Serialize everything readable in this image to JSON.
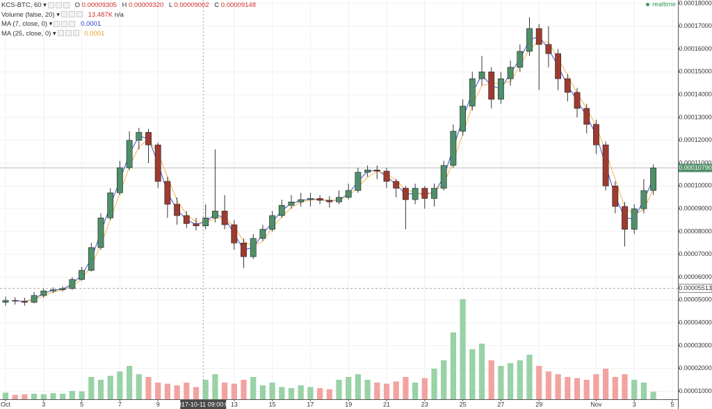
{
  "chart_data": {
    "type": "candlestick",
    "status": {
      "symbol": "KCS-BTC, 60",
      "o_label": "O",
      "open": "0.00009305",
      "h_label": "H",
      "high": "0.00009320",
      "l_label": "L",
      "low": "0.00009002",
      "c_label": "C",
      "close": "0.00009148",
      "volume_name": "Volume (false, 20)",
      "volume_value": "13.487K",
      "volume_ma": "n/a",
      "ma7_value": "0.0001",
      "ma25_value": "0.0001"
    },
    "realtime": "realtime",
    "x": [
      "2017-10-01T00:00",
      "2017-10-01T12:00",
      "2017-10-02T00:00",
      "2017-10-02T12:00",
      "2017-10-03T00:00",
      "2017-10-03T12:00",
      "2017-10-04T00:00",
      "2017-10-04T12:00",
      "2017-10-05T00:00",
      "2017-10-05T12:00",
      "2017-10-06T00:00",
      "2017-10-06T12:00",
      "2017-10-07T00:00",
      "2017-10-07T12:00",
      "2017-10-08T00:00",
      "2017-10-08T12:00",
      "2017-10-09T00:00",
      "2017-10-09T12:00",
      "2017-10-10T00:00",
      "2017-10-10T12:00",
      "2017-10-11T00:00",
      "2017-10-11T12:00",
      "2017-10-12T00:00",
      "2017-10-12T12:00",
      "2017-10-13T00:00",
      "2017-10-13T12:00",
      "2017-10-14T00:00",
      "2017-10-14T12:00",
      "2017-10-15T00:00",
      "2017-10-15T12:00",
      "2017-10-16T00:00",
      "2017-10-16T12:00",
      "2017-10-17T00:00",
      "2017-10-17T12:00",
      "2017-10-18T00:00",
      "2017-10-18T12:00",
      "2017-10-19T00:00",
      "2017-10-19T12:00",
      "2017-10-20T00:00",
      "2017-10-20T12:00",
      "2017-10-21T00:00",
      "2017-10-21T12:00",
      "2017-10-22T00:00",
      "2017-10-22T12:00",
      "2017-10-23T00:00",
      "2017-10-23T12:00",
      "2017-10-24T00:00",
      "2017-10-24T12:00",
      "2017-10-25T00:00",
      "2017-10-25T12:00",
      "2017-10-26T00:00",
      "2017-10-26T12:00",
      "2017-10-27T00:00",
      "2017-10-27T12:00",
      "2017-10-28T00:00",
      "2017-10-28T12:00",
      "2017-10-29T00:00",
      "2017-10-29T12:00",
      "2017-10-30T00:00",
      "2017-10-30T12:00",
      "2017-10-31T00:00",
      "2017-10-31T12:00",
      "2017-11-01T00:00",
      "2017-11-01T12:00",
      "2017-11-02T00:00",
      "2017-11-02T12:00",
      "2017-11-03T00:00",
      "2017-11-03T12:00",
      "2017-11-04T00:00"
    ],
    "open": [
      4.9e-05,
      4.98e-05,
      4.95e-05,
      4.9e-05,
      5.2e-05,
      5.4e-05,
      5.45e-05,
      5.5e-05,
      5.9e-05,
      6.3e-05,
      7.3e-05,
      8.6e-05,
      9.7e-05,
      0.000108,
      0.00012,
      0.0001235,
      0.000118,
      0.000102,
      9.2e-05,
      8.7e-05,
      8.35e-05,
      8.25e-05,
      8.6e-05,
      8.9e-05,
      8.3e-05,
      7.5e-05,
      6.9e-05,
      7.7e-05,
      8.1e-05,
      8.7e-05,
      9.15e-05,
      9.3e-05,
      9.4e-05,
      9.45e-05,
      9.37e-05,
      9.3e-05,
      9.5e-05,
      9.8e-05,
      0.000106,
      0.000107,
      0.0001065,
      0.000102,
      9.9e-05,
      9.4e-05,
      9.9e-05,
      9.45e-05,
      9.9e-05,
      0.000109,
      0.000124,
      0.000135,
      0.000147,
      0.00015,
      0.000138,
      0.000147,
      0.000152,
      0.000159,
      0.000169,
      0.000162,
      0.000158,
      0.000147,
      0.000141,
      0.000134,
      0.000127,
      0.000118,
      0.0001,
      9.1e-05,
      8.1e-05,
      9e-05,
      9.8e-05
    ],
    "high": [
      5.15e-05,
      5.12e-05,
      5.1e-05,
      5.35e-05,
      5.5e-05,
      5.55e-05,
      5.6e-05,
      6e-05,
      6.45e-05,
      7.5e-05,
      8.8e-05,
      9.9e-05,
      0.000111,
      0.000124,
      0.0001255,
      0.000125,
      0.000119,
      0.000104,
      9.5e-05,
      8.9e-05,
      8.6e-05,
      9.2e-05,
      0.000116,
      9.6e-05,
      8.5e-05,
      7.7e-05,
      7.9e-05,
      8.3e-05,
      8.9e-05,
      9.4e-05,
      9.6e-05,
      9.7e-05,
      9.7e-05,
      9.6e-05,
      9.55e-05,
      9.8e-05,
      0.000101,
      0.000108,
      0.000109,
      0.000109,
      0.000108,
      0.000103,
      0.0001,
      0.000101,
      0.0001,
      0.000101,
      0.000111,
      0.000127,
      0.000138,
      0.00015,
      0.000157,
      0.000152,
      0.00015,
      0.000155,
      0.000162,
      0.0001739,
      0.000171,
      0.00017,
      0.00016,
      0.000149,
      0.000143,
      0.000136,
      0.000129,
      0.0001195,
      0.000102,
      9.3e-05,
      9.2e-05,
      0.000103,
      0.0001095
    ],
    "low": [
      4.75e-05,
      4.8e-05,
      4.75e-05,
      4.85e-05,
      5.1e-05,
      5.3e-05,
      5.38e-05,
      5.45e-05,
      5.85e-05,
      6.25e-05,
      7.2e-05,
      8.5e-05,
      9.6e-05,
      0.000107,
      0.000116,
      0.00011,
      9.9e-05,
      8.6e-05,
      8.3e-05,
      8.15e-05,
      8.05e-05,
      8.1e-05,
      8.4e-05,
      8.1e-05,
      7.2e-05,
      6.4e-05,
      6.8e-05,
      7.6e-05,
      8e-05,
      8.6e-05,
      9e-05,
      9.1e-05,
      9.1e-05,
      9.2e-05,
      9.05e-05,
      9.2e-05,
      9.4e-05,
      9.7e-05,
      0.000104,
      0.000103,
      9.9e-05,
      9.5e-05,
      8.1e-05,
      9.2e-05,
      9e-05,
      9.1e-05,
      9.8e-05,
      0.000108,
      0.000122,
      0.000133,
      0.000144,
      0.000134,
      0.000136,
      0.000144,
      0.00015,
      0.000157,
      0.000142,
      0.000152,
      0.000142,
      0.000137,
      0.00013,
      0.000123,
      0.000114,
      9.8e-05,
      8.8e-05,
      7.35e-05,
      7.9e-05,
      8.8e-05,
      9.6e-05
    ],
    "close": [
      4.98e-05,
      4.95e-05,
      4.9e-05,
      5.2e-05,
      5.4e-05,
      5.45e-05,
      5.5e-05,
      5.9e-05,
      6.3e-05,
      7.3e-05,
      8.6e-05,
      9.7e-05,
      0.000108,
      0.00012,
      0.0001235,
      0.000118,
      0.000102,
      9.2e-05,
      8.7e-05,
      8.35e-05,
      8.25e-05,
      8.6e-05,
      8.9e-05,
      8.3e-05,
      7.5e-05,
      6.9e-05,
      7.7e-05,
      8.1e-05,
      8.7e-05,
      9.15e-05,
      9.3e-05,
      9.4e-05,
      9.45e-05,
      9.37e-05,
      9.3e-05,
      9.5e-05,
      9.8e-05,
      0.000106,
      0.000107,
      0.0001065,
      0.000102,
      9.9e-05,
      9.4e-05,
      9.9e-05,
      9.45e-05,
      9.9e-05,
      0.000109,
      0.000124,
      0.000135,
      0.000147,
      0.00015,
      0.000138,
      0.000147,
      0.000152,
      0.000159,
      0.000169,
      0.000162,
      0.000158,
      0.000147,
      0.000141,
      0.000134,
      0.000127,
      0.000118,
      0.0001,
      9.1e-05,
      8.1e-05,
      9e-05,
      9.8e-05,
      0.0001079
    ],
    "volume": [
      12000,
      8000,
      9000,
      10000,
      9000,
      11000,
      10000,
      15000,
      14000,
      40000,
      35000,
      42000,
      50000,
      60000,
      45000,
      40000,
      30000,
      28000,
      25000,
      30000,
      22000,
      35000,
      45000,
      30000,
      28000,
      35000,
      40000,
      25000,
      30000,
      22000,
      20000,
      25000,
      22000,
      20000,
      18000,
      35000,
      40000,
      45000,
      35000,
      30000,
      28000,
      32000,
      40000,
      30000,
      38000,
      55000,
      70000,
      120000,
      180000,
      90000,
      100000,
      70000,
      60000,
      65000,
      70000,
      80000,
      60000,
      50000,
      45000,
      40000,
      38000,
      35000,
      45000,
      55000,
      40000,
      45000,
      35000,
      30000,
      13487
    ],
    "up_color": "#4f8f69",
    "down_color": "#9e3b31",
    "volume_up_color": "#98d2a6",
    "volume_down_color": "#f2a3a0",
    "series": [
      {
        "name": "MA (7, close, 0)",
        "color": "#3c4fd6",
        "values": [
          null,
          4.97e-05,
          4.93e-05,
          5.05e-05,
          5.3e-05,
          5.43e-05,
          5.48e-05,
          5.7e-05,
          6.1e-05,
          6.8e-05,
          7.95e-05,
          9.15e-05,
          0.0001025,
          0.000114,
          0.0001218,
          0.0001208,
          0.00011,
          9.7e-05,
          8.95e-05,
          8.53e-05,
          8.3e-05,
          8.43e-05,
          8.75e-05,
          8.6e-05,
          7.9e-05,
          7.2e-05,
          7.3e-05,
          7.9e-05,
          8.4e-05,
          8.93e-05,
          9.23e-05,
          9.35e-05,
          9.43e-05,
          9.41e-05,
          9.34e-05,
          9.4e-05,
          9.65e-05,
          0.000102,
          0.0001065,
          0.0001068,
          0.0001043,
          0.0001005,
          9.65e-05,
          9.65e-05,
          9.68e-05,
          9.68e-05,
          0.000104,
          0.0001165,
          0.0001295,
          0.000141,
          0.0001485,
          0.000144,
          0.0001425,
          0.0001495,
          0.0001555,
          0.000164,
          0.0001655,
          0.00016,
          0.0001525,
          0.000144,
          0.0001375,
          0.0001305,
          0.0001225,
          0.000109,
          9.55e-05,
          8.6e-05,
          8.55e-05,
          9.4e-05,
          0.000103
        ]
      },
      {
        "name": "MA (25, close, 0)",
        "color": "#f5b34a",
        "values": [
          null,
          null,
          4.94e-05,
          5.02e-05,
          5.17e-05,
          5.35e-05,
          5.45e-05,
          5.62e-05,
          5.9e-05,
          6.5e-05,
          7.4e-05,
          8.53e-05,
          9.7e-05,
          0.0001083,
          0.0001172,
          0.0001205,
          0.0001145,
          0.000104,
          9.37e-05,
          8.75e-05,
          8.43e-05,
          8.4e-05,
          8.58e-05,
          8.6e-05,
          8.23e-05,
          7.57e-05,
          7.37e-05,
          7.57e-05,
          8.17e-05,
          8.65e-05,
          9.05e-05,
          9.28e-05,
          9.38e-05,
          9.41e-05,
          9.37e-05,
          9.39e-05,
          9.53e-05,
          9.97e-05,
          0.0001037,
          0.0001065,
          0.0001052,
          0.0001025,
          9.83e-05,
          9.73e-05,
          9.58e-05,
          9.75e-05,
          0.0001008,
          0.0001107,
          0.0001227,
          0.0001353,
          0.000144,
          0.000145,
          0.000145,
          0.0001457,
          0.0001527,
          0.00016,
          0.0001633,
          0.000163,
          0.0001557,
          0.0001487,
          0.0001407,
          0.000134,
          0.0001263,
          0.000115,
          0.000103,
          9.07e-05,
          8.73e-05,
          8.97e-05,
          9.86e-05
        ]
      }
    ],
    "last_price": {
      "value": 0.0001079,
      "label": "0.00010790"
    },
    "reference_price": {
      "value": 5.513e-05,
      "label": "0.00005513"
    },
    "crosshair": "2017-10-11 09:00:00",
    "xlim": [
      "2017-09-30T17:00",
      "2017-11-05T07:00"
    ],
    "xticks": [
      {
        "value": "2017-10-01",
        "label": "Oct"
      },
      {
        "value": "2017-10-03",
        "label": "3"
      },
      {
        "value": "2017-10-05",
        "label": "5"
      },
      {
        "value": "2017-10-07",
        "label": "7"
      },
      {
        "value": "2017-10-09",
        "label": "9"
      },
      {
        "value": "2017-10-13",
        "label": "13"
      },
      {
        "value": "2017-10-15",
        "label": "15"
      },
      {
        "value": "2017-10-17",
        "label": "17"
      },
      {
        "value": "2017-10-19",
        "label": "19"
      },
      {
        "value": "2017-10-21",
        "label": "21"
      },
      {
        "value": "2017-10-23",
        "label": "23"
      },
      {
        "value": "2017-10-25",
        "label": "25"
      },
      {
        "value": "2017-10-27",
        "label": "27"
      },
      {
        "value": "2017-10-29",
        "label": "29"
      },
      {
        "value": "2017-11-01",
        "label": "Nov"
      },
      {
        "value": "2017-11-03",
        "label": "3"
      },
      {
        "value": "2017-11-05",
        "label": "5"
      }
    ],
    "ylim": [
      6.5e-06,
      0.0001815
    ],
    "yticks": [
      {
        "value": 1e-05,
        "label": "0.00001000"
      },
      {
        "value": 2e-05,
        "label": "0.00002000"
      },
      {
        "value": 3e-05,
        "label": "0.00003000"
      },
      {
        "value": 4e-05,
        "label": "0.00004000"
      },
      {
        "value": 5e-05,
        "label": "0.00005000"
      },
      {
        "value": 6e-05,
        "label": "0.00006000"
      },
      {
        "value": 7e-05,
        "label": "0.00007000"
      },
      {
        "value": 8e-05,
        "label": "0.00008000"
      },
      {
        "value": 9e-05,
        "label": "0.00009000"
      },
      {
        "value": 0.0001,
        "label": "0.00010000"
      },
      {
        "value": 0.00011,
        "label": "0.00011000"
      },
      {
        "value": 0.00012,
        "label": "0.00012000"
      },
      {
        "value": 0.00013,
        "label": "0.00013000"
      },
      {
        "value": 0.00014,
        "label": "0.00014000"
      },
      {
        "value": 0.00015,
        "label": "0.00015000"
      },
      {
        "value": 0.00016,
        "label": "0.00016000"
      },
      {
        "value": 0.00017,
        "label": "0.00017000"
      },
      {
        "value": 0.00018,
        "label": "0.00018000"
      }
    ],
    "volume_lim": [
      0,
      250000
    ],
    "grid": true
  }
}
